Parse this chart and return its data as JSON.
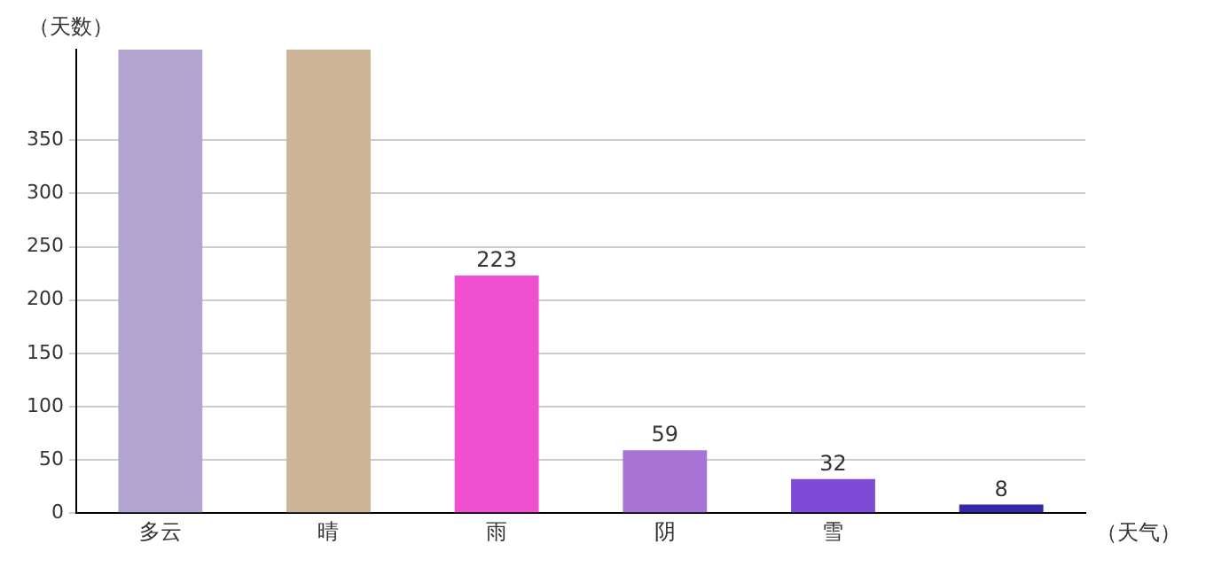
{
  "chart_data": {
    "type": "bar",
    "xlabel": "（天气）",
    "ylabel": "（天数）",
    "categories": [
      "多云",
      "晴",
      "雨",
      "阴",
      "雪",
      null
    ],
    "values": [
      435,
      435,
      223,
      59,
      32,
      8
    ],
    "value_labels": [
      null,
      null,
      "223",
      "59",
      "32",
      "8"
    ],
    "colors": [
      "#b3a4cf",
      "#cdb497",
      "#f050d0",
      "#a774d6",
      "#7f4ad6",
      "#3228a8"
    ],
    "ylim": [
      0,
      435
    ],
    "yticks": [
      0,
      50,
      100,
      150,
      200,
      250,
      300,
      350
    ],
    "grid": "y",
    "legend": false
  }
}
